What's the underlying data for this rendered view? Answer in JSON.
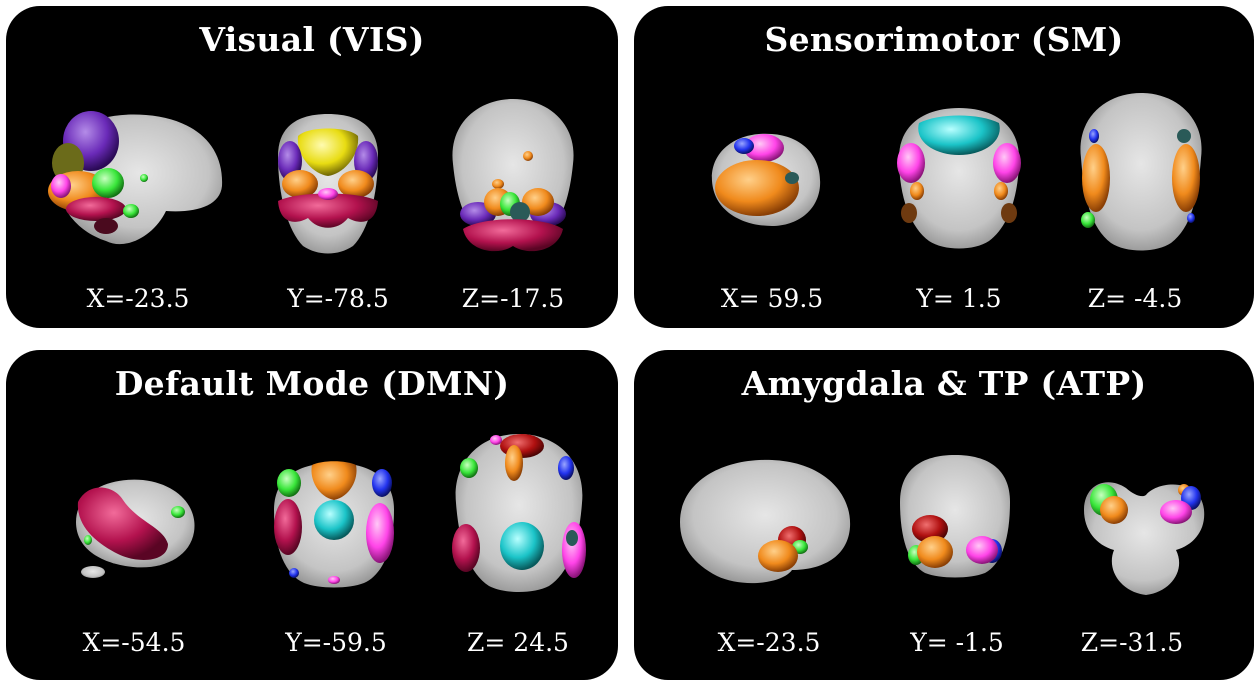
{
  "panels": [
    {
      "title": "Visual (VIS)",
      "coords": [
        "X=-23.5",
        "Y=-78.5",
        "Z=-17.5"
      ]
    },
    {
      "title": "Sensorimotor (SM)",
      "coords": [
        "X= 59.5",
        "Y= 1.5",
        "Z= -4.5"
      ]
    },
    {
      "title": "Default Mode (DMN)",
      "coords": [
        "X=-54.5",
        "Y=-59.5",
        "Z= 24.5"
      ]
    },
    {
      "title": "Amygdala & TP (ATP)",
      "coords": [
        "X=-23.5",
        "Y= -1.5",
        "Z=-31.5"
      ]
    }
  ],
  "colors": {
    "panel_bg": "#000000",
    "brain_gray": "#c8c8c8",
    "purple": "#6a2ab8",
    "orange": "#f08a1c",
    "green": "#39e63a",
    "magenta": "#ff44e8",
    "maroon": "#b3124e",
    "yellow": "#e8dc12",
    "cyan": "#1bc4c8",
    "blue": "#2233ee",
    "darkred": "#b01010"
  }
}
